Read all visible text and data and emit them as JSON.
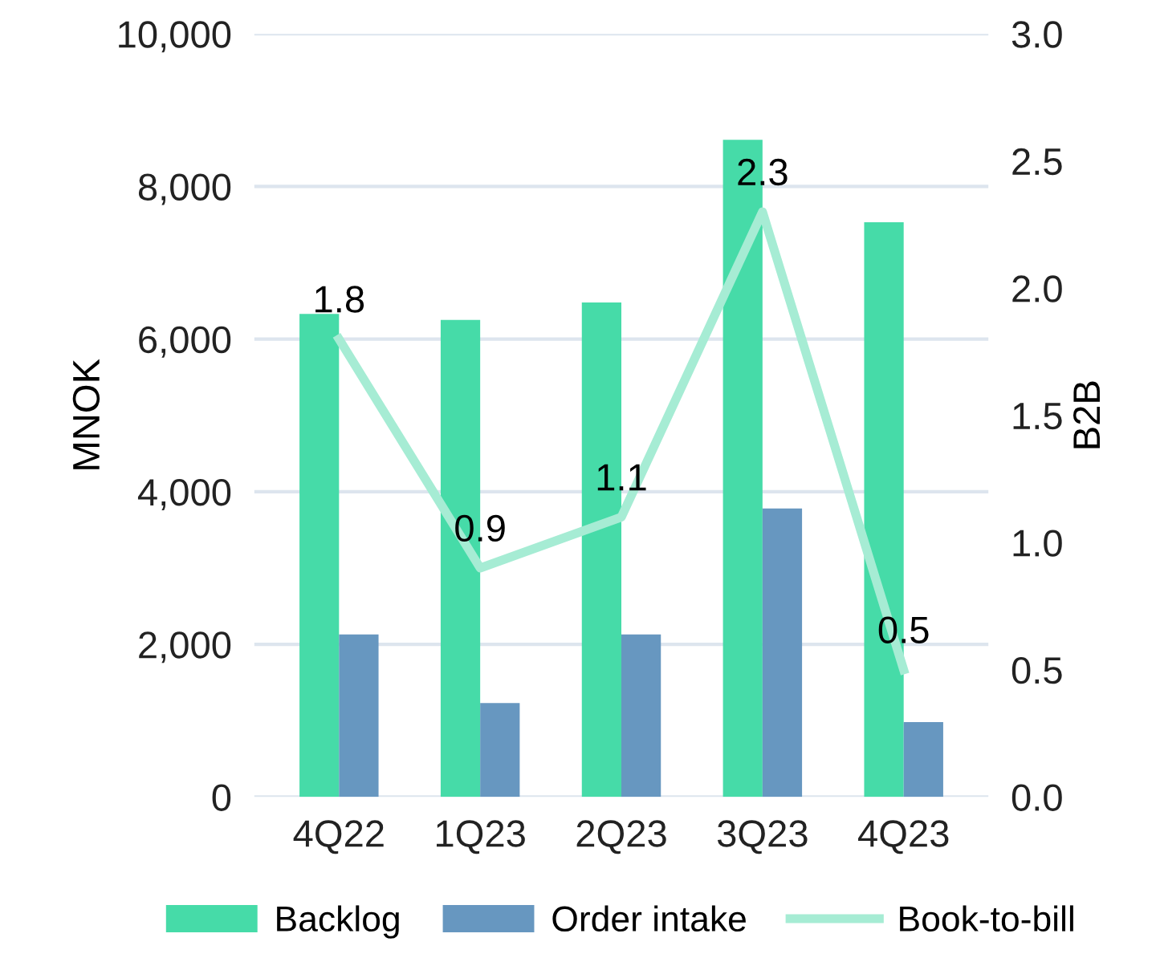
{
  "chart_data": {
    "type": "bar",
    "ylabel": "MNOK",
    "y2label": "B2B",
    "categories": [
      "4Q22",
      "1Q23",
      "2Q23",
      "3Q23",
      "4Q23"
    ],
    "series": [
      {
        "name": "Backlog",
        "color": "#46dba8",
        "values": [
          6330,
          6250,
          6480,
          8610,
          7530
        ]
      },
      {
        "name": "Order intake",
        "color": "#6797c0",
        "values": [
          2130,
          1230,
          2130,
          3780,
          980
        ]
      },
      {
        "name": "Book-to-bill",
        "type": "line",
        "axis": "y2",
        "color": "#a6ecd4",
        "values": [
          1.8,
          0.9,
          1.1,
          2.3,
          0.5
        ],
        "data_labels": true
      }
    ],
    "ylim": [
      0,
      10000
    ],
    "yticks": [
      {
        "value": 0,
        "label": "0"
      },
      {
        "value": 2000,
        "label": "2,000"
      },
      {
        "value": 4000,
        "label": "4,000"
      },
      {
        "value": 6000,
        "label": "6,000"
      },
      {
        "value": 8000,
        "label": "8,000"
      },
      {
        "value": 10000,
        "label": "10,000"
      }
    ],
    "y2lim": [
      0,
      3
    ],
    "y2ticks": [
      {
        "value": 0,
        "label": "0.0"
      },
      {
        "value": 0.5,
        "label": "0.5"
      },
      {
        "value": 1,
        "label": "1.0"
      },
      {
        "value": 1.5,
        "label": "1.5"
      },
      {
        "value": 2,
        "label": "2.0"
      },
      {
        "value": 2.5,
        "label": "2.5"
      },
      {
        "value": 3,
        "label": "3.0"
      }
    ],
    "grid": "y",
    "legend": "bottom",
    "marker": "none",
    "line_style": "solid"
  }
}
